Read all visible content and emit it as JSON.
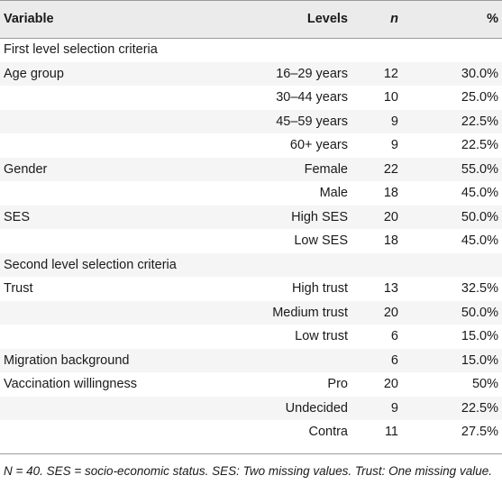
{
  "table": {
    "headers": {
      "variable": "Variable",
      "levels": "Levels",
      "n": "n",
      "percent": "%"
    },
    "rows": [
      {
        "variable": "First level selection criteria",
        "level": "",
        "n": "",
        "percent": ""
      },
      {
        "variable": "Age group",
        "level": "16–29 years",
        "n": "12",
        "percent": "30.0%"
      },
      {
        "variable": "",
        "level": "30–44 years",
        "n": "10",
        "percent": "25.0%"
      },
      {
        "variable": "",
        "level": "45–59 years",
        "n": "9",
        "percent": "22.5%"
      },
      {
        "variable": "",
        "level": "60+ years",
        "n": "9",
        "percent": "22.5%"
      },
      {
        "variable": "Gender",
        "level": "Female",
        "n": "22",
        "percent": "55.0%"
      },
      {
        "variable": "",
        "level": "Male",
        "n": "18",
        "percent": "45.0%"
      },
      {
        "variable": "SES",
        "level": "High SES",
        "n": "20",
        "percent": "50.0%"
      },
      {
        "variable": "",
        "level": "Low SES",
        "n": "18",
        "percent": "45.0%"
      },
      {
        "variable": "Second level selection criteria",
        "level": "",
        "n": "",
        "percent": ""
      },
      {
        "variable": "Trust",
        "level": "High trust",
        "n": "13",
        "percent": "32.5%"
      },
      {
        "variable": "",
        "level": "Medium trust",
        "n": "20",
        "percent": "50.0%"
      },
      {
        "variable": "",
        "level": "Low trust",
        "n": "6",
        "percent": "15.0%"
      },
      {
        "variable": "Migration background",
        "level": "",
        "n": "6",
        "percent": "15.0%"
      },
      {
        "variable": "Vaccination willingness",
        "level": "Pro",
        "n": "20",
        "percent": "50%"
      },
      {
        "variable": "",
        "level": "Undecided",
        "n": "9",
        "percent": "22.5%"
      },
      {
        "variable": "",
        "level": "Contra",
        "n": "11",
        "percent": "27.5%"
      }
    ],
    "footnote": "N = 40. SES = socio-economic status. SES: Two missing values. Trust: One missing value."
  }
}
